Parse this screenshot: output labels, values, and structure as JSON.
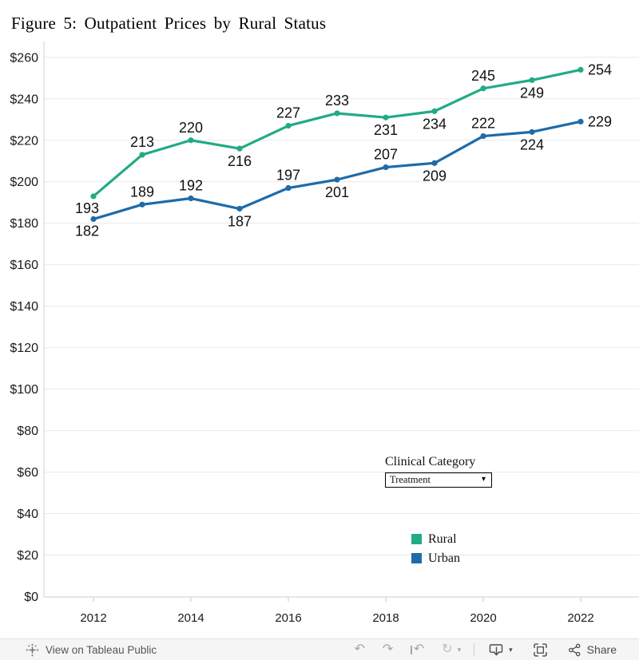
{
  "title": "Figure 5: Outpatient Prices by Rural Status",
  "chart_data": {
    "type": "line",
    "x": [
      2012,
      2013,
      2014,
      2015,
      2016,
      2017,
      2018,
      2019,
      2020,
      2021,
      2022
    ],
    "x_axis": {
      "tick_years": [
        2012,
        2014,
        2016,
        2018,
        2020,
        2022
      ]
    },
    "y_axis": {
      "ylim": [
        0,
        260
      ],
      "tick_values": [
        0,
        20,
        40,
        60,
        80,
        100,
        120,
        140,
        160,
        180,
        200,
        220,
        240,
        260
      ],
      "tick_labels": [
        "$0",
        "$20",
        "$40",
        "$60",
        "$80",
        "$100",
        "$120",
        "$140",
        "$160",
        "$180",
        "$200",
        "$220",
        "$240",
        "$260"
      ]
    },
    "grid": true,
    "legend_position": "inside-right-bottom",
    "series": [
      {
        "name": "Rural",
        "color": "#21AB87",
        "values": [
          193,
          213,
          220,
          216,
          227,
          233,
          231,
          234,
          245,
          249,
          254
        ],
        "label_positions": [
          "below-left",
          "above",
          "above",
          "below",
          "above",
          "above",
          "below",
          "below",
          "above",
          "below",
          "right"
        ]
      },
      {
        "name": "Urban",
        "color": "#1E6BA8",
        "values": [
          182,
          189,
          192,
          187,
          197,
          201,
          207,
          209,
          222,
          224,
          229
        ],
        "label_positions": [
          "below-left",
          "above",
          "above",
          "below",
          "above",
          "below",
          "above",
          "below",
          "above",
          "below",
          "right"
        ]
      }
    ]
  },
  "filter": {
    "label": "Clinical Category",
    "value": "Treatment",
    "caret": "▾"
  },
  "footer": {
    "view_text": "View on Tableau Public",
    "share_label": "Share",
    "caret": "▾"
  },
  "icon_glyphs": {
    "undo": "↶",
    "redo": "↷",
    "revert": "↶",
    "refresh": "↻"
  }
}
